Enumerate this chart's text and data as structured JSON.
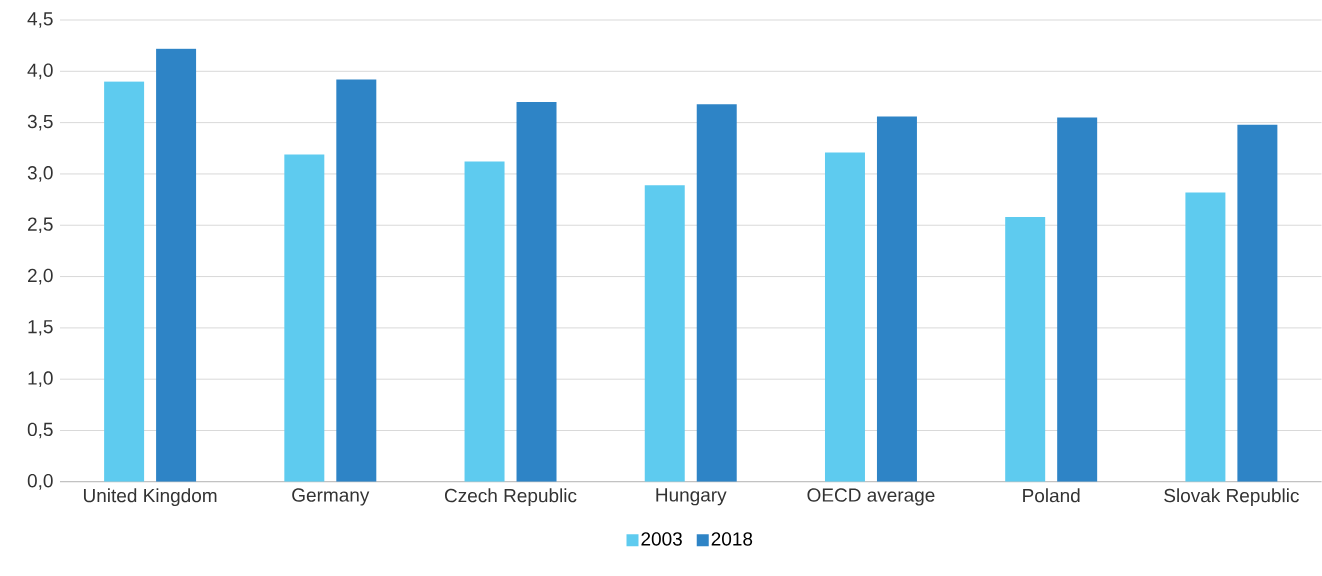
{
  "chart_data": {
    "type": "bar",
    "categories": [
      "United Kingdom",
      "Germany",
      "Czech Republic",
      "Hungary",
      "OECD average",
      "Poland",
      "Slovak Republic"
    ],
    "series": [
      {
        "name": "2003",
        "color": "#5ecbef",
        "values": [
          3.9,
          3.19,
          3.12,
          2.89,
          3.21,
          2.58,
          2.82
        ]
      },
      {
        "name": "2018",
        "color": "#2e84c6",
        "values": [
          4.22,
          3.92,
          3.7,
          3.68,
          3.56,
          3.55,
          3.48
        ]
      }
    ],
    "ylim": [
      0,
      4.5
    ],
    "yticks": [
      {
        "value": 0,
        "label": "0,0"
      },
      {
        "value": 0.5,
        "label": "0,5"
      },
      {
        "value": 1,
        "label": "1,0"
      },
      {
        "value": 1.5,
        "label": "1,5"
      },
      {
        "value": 2,
        "label": "2,0"
      },
      {
        "value": 2.5,
        "label": "2,5"
      },
      {
        "value": 3,
        "label": "3,0"
      },
      {
        "value": 3.5,
        "label": "3,5"
      },
      {
        "value": 4,
        "label": "4,0"
      },
      {
        "value": 4.5,
        "label": "4,5"
      }
    ],
    "grid": "y",
    "legend": "bottom"
  }
}
